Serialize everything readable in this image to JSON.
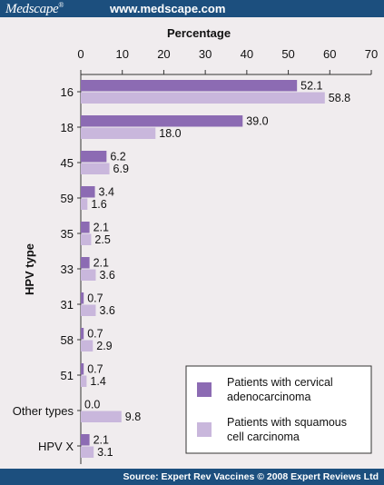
{
  "header": {
    "logo": "Medscape",
    "logo_mark": "®",
    "site_url": "www.medscape.com"
  },
  "footer": {
    "source": "Source: Expert Rev Vaccines © 2008 Expert Reviews Ltd"
  },
  "colors": {
    "header_bg": "#1c4f7e",
    "plot_bg": "#f0ecee",
    "series1": "#8c6bb3",
    "series2": "#c9b7dc"
  },
  "chart_data": {
    "type": "bar",
    "orientation": "horizontal",
    "xlabel": "Percentage",
    "ylabel": "HPV type",
    "xlim": [
      0,
      70
    ],
    "xticks": [
      0,
      10,
      20,
      30,
      40,
      50,
      60,
      70
    ],
    "grid": false,
    "legend_position": "bottom-right",
    "categories": [
      "16",
      "18",
      "45",
      "59",
      "35",
      "33",
      "31",
      "58",
      "51",
      "Other types",
      "HPV X"
    ],
    "series": [
      {
        "name": "Patients with cervical adenocarcinoma",
        "values": [
          52.1,
          39.0,
          6.2,
          3.4,
          2.1,
          2.1,
          0.7,
          0.7,
          0.7,
          0.0,
          2.1
        ],
        "labels": [
          "52.1",
          "39.0",
          "6.2",
          "3.4",
          "2.1",
          "2.1",
          "0.7",
          "0.7",
          "0.7",
          "0.0",
          "2.1"
        ]
      },
      {
        "name": "Patients with squamous cell carcinoma",
        "values": [
          58.8,
          18.0,
          6.9,
          1.6,
          2.5,
          3.6,
          3.6,
          2.9,
          1.4,
          9.8,
          3.1
        ],
        "labels": [
          "58.8",
          "18.0",
          "6.9",
          "1.6",
          "2.5",
          "3.6",
          "3.6",
          "2.9",
          "1.4",
          "9.8",
          "3.1"
        ]
      }
    ],
    "legend": [
      {
        "line1": "Patients with cervical",
        "line2": "adenocarcinoma"
      },
      {
        "line1": "Patients with squamous",
        "line2": "cell carcinoma"
      }
    ]
  }
}
